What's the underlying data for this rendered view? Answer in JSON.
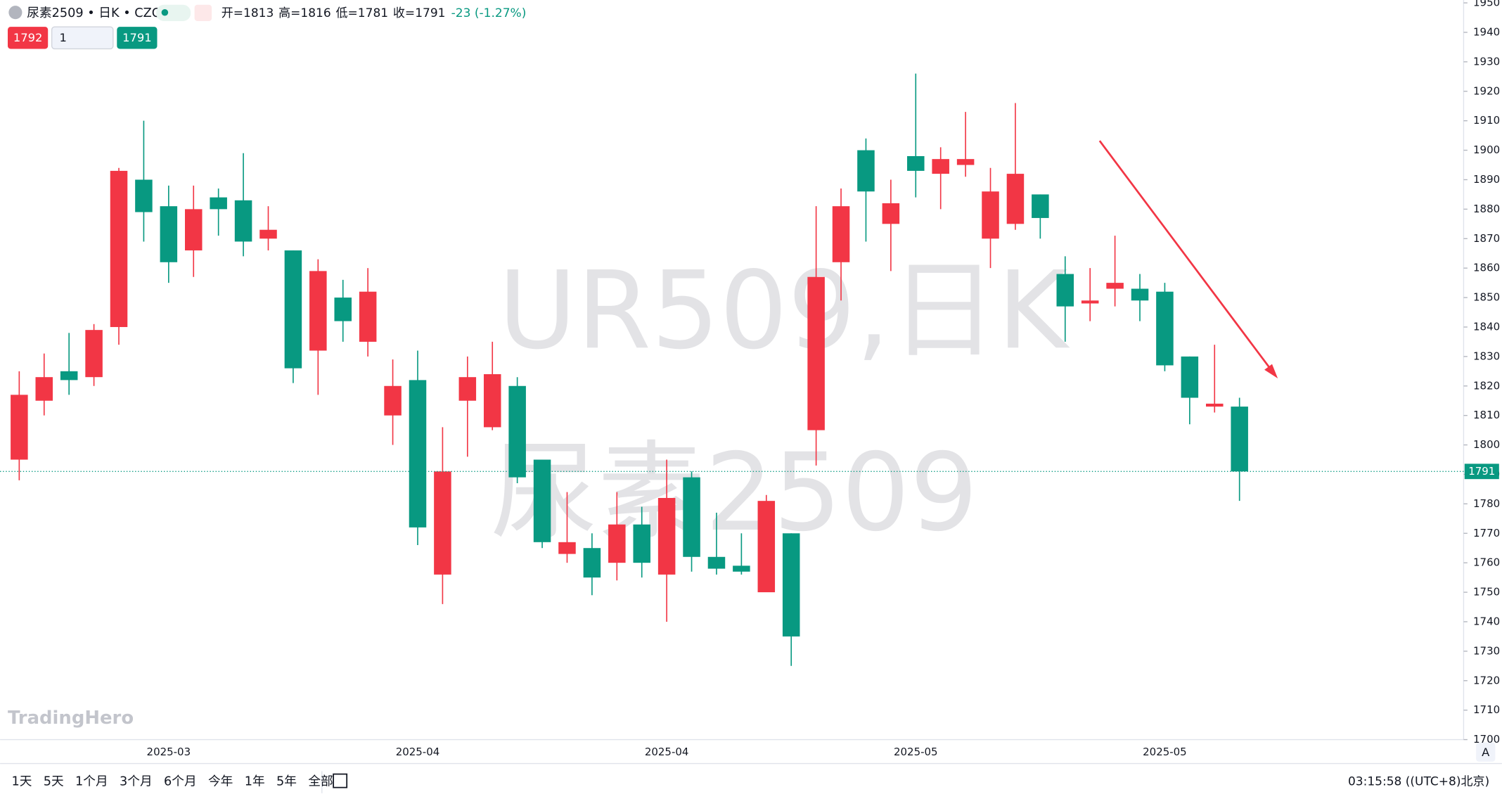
{
  "chart_data": {
    "type": "candlestick",
    "title": "尿素2509 • 日K • CZC",
    "ohlc_labels": [
      "开=1813",
      "高=1816",
      "低=1781",
      "收=1791"
    ],
    "change": "-23 (-1.27%)",
    "bid": 1792,
    "quantity": 1,
    "ask": 1791,
    "watermark": [
      "UR509,日K",
      "尿素2509"
    ],
    "logo": "TradingHero",
    "periods": [
      "1天",
      "5天",
      "1个月",
      "3个月",
      "6个月",
      "今年",
      "1年",
      "5年",
      "全部"
    ],
    "time": "03:15:58 ((UTC+8)北京)",
    "auto_button": "A",
    "up_color": "#f23645",
    "down_color": "#089981",
    "categories": [
      null,
      null,
      null,
      null,
      null,
      null,
      "2025-03",
      null,
      null,
      null,
      null,
      null,
      null,
      null,
      null,
      null,
      "2025-04",
      null,
      null,
      null,
      null,
      null,
      null,
      null,
      null,
      null,
      "2025-04",
      null,
      null,
      null,
      null,
      null,
      null,
      null,
      null,
      null,
      "2025-05",
      null,
      null,
      null,
      null,
      null,
      null,
      null,
      null,
      null,
      "2025-05",
      null,
      null,
      null
    ],
    "open": [
      1795,
      1815,
      1825,
      1823,
      1840,
      1890,
      1881,
      1866,
      1884,
      1883,
      1870,
      1866,
      1832,
      1850,
      1835,
      1810,
      1822,
      1756,
      1815,
      1806,
      1820,
      1795,
      1763,
      1765,
      1760,
      1773,
      1756,
      1789,
      1762,
      1759,
      1750,
      1770,
      1805,
      1862,
      1900,
      1875,
      1898,
      1892,
      1895,
      1870,
      1875,
      1885,
      1858,
      1848,
      1853,
      1853,
      1852,
      1830,
      1813,
      1813
    ],
    "high": [
      1825,
      1831,
      1838,
      1841,
      1894,
      1910,
      1888,
      1888,
      1887,
      1899,
      1881,
      1866,
      1863,
      1856,
      1860,
      1829,
      1832,
      1806,
      1830,
      1835,
      1823,
      1795,
      1784,
      1770,
      1784,
      1779,
      1795,
      1791,
      1777,
      1770,
      1783,
      1770,
      1881,
      1887,
      1904,
      1890,
      1926,
      1901,
      1913,
      1894,
      1916,
      1885,
      1864,
      1860,
      1871,
      1858,
      1855,
      1830,
      1834,
      1816
    ],
    "low": [
      1788,
      1810,
      1817,
      1820,
      1834,
      1869,
      1855,
      1857,
      1871,
      1864,
      1866,
      1821,
      1817,
      1835,
      1830,
      1800,
      1766,
      1746,
      1796,
      1805,
      1787,
      1765,
      1760,
      1749,
      1754,
      1755,
      1740,
      1757,
      1756,
      1756,
      1750,
      1725,
      1793,
      1849,
      1869,
      1859,
      1884,
      1880,
      1891,
      1860,
      1873,
      1870,
      1835,
      1842,
      1847,
      1842,
      1825,
      1807,
      1811,
      1781
    ],
    "close": [
      1817,
      1823,
      1822,
      1839,
      1893,
      1879,
      1862,
      1880,
      1880,
      1869,
      1873,
      1826,
      1859,
      1842,
      1852,
      1820,
      1772,
      1791,
      1823,
      1824,
      1789,
      1767,
      1767,
      1755,
      1773,
      1760,
      1782,
      1762,
      1758,
      1757,
      1781,
      1735,
      1857,
      1881,
      1886,
      1882,
      1893,
      1897,
      1897,
      1886,
      1892,
      1877,
      1847,
      1849,
      1855,
      1849,
      1827,
      1816,
      1814,
      1791
    ],
    "ylim": [
      1700,
      1950
    ],
    "yticks": [
      1700,
      1710,
      1720,
      1730,
      1740,
      1750,
      1760,
      1770,
      1780,
      1790,
      1800,
      1810,
      1820,
      1830,
      1840,
      1850,
      1860,
      1870,
      1880,
      1890,
      1900,
      1910,
      1920,
      1930,
      1940,
      1950
    ]
  }
}
